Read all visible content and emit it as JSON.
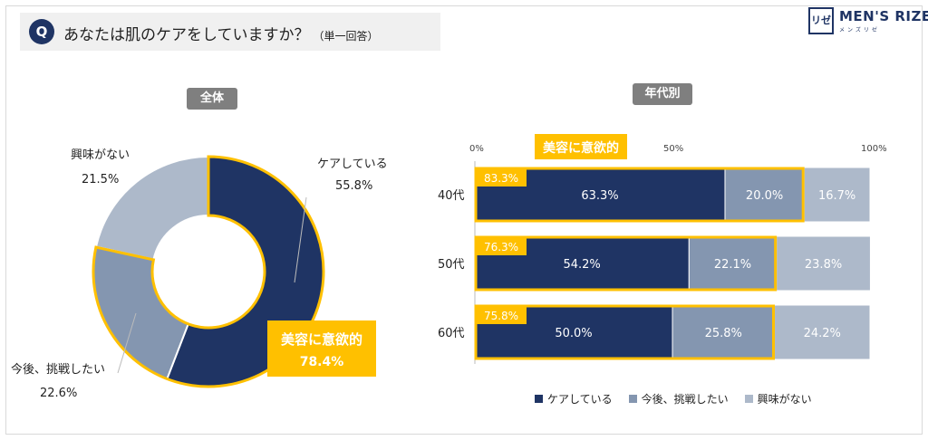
{
  "question": {
    "badge": "Q",
    "text": "あなたは肌のケアをしていますか？",
    "sub": "（単一回答）"
  },
  "brand": {
    "mark": "リゼ",
    "name": "MEN'S RIZE",
    "tagline": "メンズリゼ"
  },
  "colors": {
    "care": "#1f3464",
    "challenge": "#8496b0",
    "none": "#adb9ca",
    "highlight": "#ffc000",
    "pill": "#7f7f7f"
  },
  "panels": {
    "overall_title": "全体",
    "age_title": "年代別"
  },
  "chart_data": [
    {
      "type": "donut",
      "title": "全体",
      "slices": [
        {
          "label": "ケアしている",
          "value": 55.8,
          "display": "55.8%"
        },
        {
          "label": "今後、挑戦したい",
          "value": 22.6,
          "display": "22.6%"
        },
        {
          "label": "興味がない",
          "value": 21.5,
          "display": "21.5%"
        }
      ],
      "highlight": {
        "label": "美容に意欲的",
        "value": 78.4,
        "display": "78.4%"
      }
    },
    {
      "type": "bar",
      "orientation": "horizontal",
      "stacked": true,
      "title": "年代別",
      "categories": [
        "40代",
        "50代",
        "60代"
      ],
      "xlim": [
        0,
        100
      ],
      "xticks": [
        "0%",
        "50%",
        "100%"
      ],
      "series": [
        {
          "name": "ケアしている",
          "values": [
            63.3,
            54.2,
            50.0
          ],
          "labels": [
            "63.3%",
            "54.2%",
            "50.0%"
          ]
        },
        {
          "name": "今後、挑戦したい",
          "values": [
            20.0,
            22.1,
            25.8
          ],
          "labels": [
            "20.0%",
            "22.1%",
            "25.8%"
          ]
        },
        {
          "name": "興味がない",
          "values": [
            16.7,
            23.8,
            24.2
          ],
          "labels": [
            "16.7%",
            "23.8%",
            "24.2%"
          ]
        }
      ],
      "highlight": {
        "label": "美容に意欲的",
        "values": [
          83.3,
          76.3,
          75.8
        ],
        "labels": [
          "83.3%",
          "76.3%",
          "75.8%"
        ]
      },
      "legend": [
        "ケアしている",
        "今後、挑戦したい",
        "興味がない"
      ],
      "legend_position": "bottom"
    }
  ]
}
